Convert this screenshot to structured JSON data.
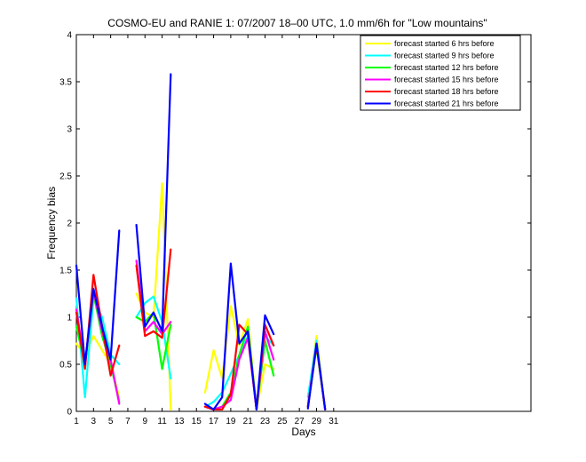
{
  "chart_data": {
    "type": "line",
    "title": "COSMO-EU and RANIE 1: 07/2007 18–00 UTC, 1.0 mm/6h for \"Low mountains\"",
    "xlabel": "Days",
    "ylabel": "Frequency bias",
    "xlim": [
      1,
      54
    ],
    "ylim": [
      0,
      4
    ],
    "xticks": [
      1,
      3,
      5,
      7,
      9,
      11,
      13,
      15,
      17,
      19,
      21,
      23,
      25,
      27,
      29,
      31
    ],
    "yticks": [
      0,
      0.5,
      1,
      1.5,
      2,
      2.5,
      3,
      3.5,
      4
    ],
    "ytick_labels": [
      "0",
      "0.5",
      "1",
      "1.5",
      "2",
      "2.5",
      "3",
      "3.5",
      "4"
    ],
    "legend_position": "top-right",
    "grid": false,
    "series": [
      {
        "name": "forecast started 6 hrs before",
        "color": "#ffff00",
        "points": [
          [
            1,
            0.72
          ],
          [
            2,
            0.6
          ],
          [
            3,
            0.8
          ],
          [
            4,
            0.65
          ],
          [
            5,
            0.5
          ],
          [
            6,
            0.15
          ],
          [
            null,
            null
          ],
          [
            8,
            1.25
          ],
          [
            9,
            1.05
          ],
          [
            10,
            1.0
          ],
          [
            11,
            2.42
          ],
          [
            12,
            0.02
          ],
          [
            null,
            null
          ],
          [
            16,
            0.2
          ],
          [
            17,
            0.65
          ],
          [
            18,
            0.35
          ],
          [
            19,
            1.12
          ],
          [
            20,
            0.7
          ],
          [
            21,
            0.98
          ],
          [
            22,
            0.02
          ],
          [
            23,
            0.5
          ],
          [
            24,
            0.45
          ],
          [
            null,
            null
          ],
          [
            28,
            0.1
          ],
          [
            29,
            0.8
          ],
          [
            30,
            0.02
          ]
        ]
      },
      {
        "name": "forecast started 9 hrs before",
        "color": "#00ffff",
        "points": [
          [
            1,
            1.2
          ],
          [
            2,
            0.15
          ],
          [
            3,
            1.2
          ],
          [
            4,
            1.0
          ],
          [
            5,
            0.6
          ],
          [
            6,
            0.5
          ],
          [
            null,
            null
          ],
          [
            8,
            1.0
          ],
          [
            9,
            1.15
          ],
          [
            10,
            1.22
          ],
          [
            11,
            0.95
          ],
          [
            12,
            0.35
          ],
          [
            null,
            null
          ],
          [
            16,
            0.05
          ],
          [
            17,
            0.1
          ],
          [
            18,
            0.2
          ],
          [
            19,
            0.4
          ],
          [
            20,
            0.6
          ],
          [
            21,
            0.8
          ],
          [
            22,
            0.02
          ],
          [
            23,
            0.8
          ],
          [
            24,
            0.7
          ],
          [
            null,
            null
          ],
          [
            28,
            0.15
          ],
          [
            29,
            0.75
          ],
          [
            30,
            0.02
          ]
        ]
      },
      {
        "name": "forecast started 12 hrs before",
        "color": "#00ff00",
        "points": [
          [
            1,
            0.9
          ],
          [
            2,
            0.5
          ],
          [
            3,
            1.25
          ],
          [
            4,
            0.8
          ],
          [
            5,
            0.5
          ],
          [
            6,
            0.1
          ],
          [
            null,
            null
          ],
          [
            8,
            1.0
          ],
          [
            9,
            0.95
          ],
          [
            10,
            1.05
          ],
          [
            11,
            0.45
          ],
          [
            12,
            0.92
          ],
          [
            null,
            null
          ],
          [
            16,
            0.05
          ],
          [
            17,
            0.02
          ],
          [
            18,
            0.05
          ],
          [
            19,
            0.2
          ],
          [
            20,
            0.6
          ],
          [
            21,
            0.9
          ],
          [
            22,
            0.02
          ],
          [
            23,
            0.75
          ],
          [
            24,
            0.38
          ],
          [
            null,
            null
          ],
          [
            28,
            0.05
          ],
          [
            29,
            0.68
          ],
          [
            30,
            0.02
          ]
        ]
      },
      {
        "name": "forecast started 15 hrs before",
        "color": "#ff00ff",
        "points": [
          [
            1,
            1.08
          ],
          [
            2,
            0.5
          ],
          [
            3,
            1.28
          ],
          [
            4,
            0.85
          ],
          [
            5,
            0.55
          ],
          [
            6,
            0.08
          ],
          [
            null,
            null
          ],
          [
            8,
            1.6
          ],
          [
            9,
            0.85
          ],
          [
            10,
            0.95
          ],
          [
            11,
            0.82
          ],
          [
            12,
            0.95
          ],
          [
            null,
            null
          ],
          [
            16,
            0.05
          ],
          [
            17,
            0.02
          ],
          [
            18,
            0.05
          ],
          [
            19,
            0.12
          ],
          [
            20,
            0.55
          ],
          [
            21,
            0.78
          ],
          [
            22,
            0.02
          ],
          [
            23,
            0.85
          ],
          [
            24,
            0.55
          ],
          [
            null,
            null
          ],
          [
            28,
            0.05
          ],
          [
            29,
            0.72
          ],
          [
            30,
            0.02
          ]
        ]
      },
      {
        "name": "forecast started 18 hrs before",
        "color": "#ff0000",
        "points": [
          [
            1,
            1.05
          ],
          [
            2,
            0.45
          ],
          [
            3,
            1.45
          ],
          [
            4,
            0.9
          ],
          [
            5,
            0.38
          ],
          [
            6,
            0.7
          ],
          [
            null,
            null
          ],
          [
            8,
            1.55
          ],
          [
            9,
            0.8
          ],
          [
            10,
            0.85
          ],
          [
            11,
            0.78
          ],
          [
            12,
            1.72
          ],
          [
            null,
            null
          ],
          [
            16,
            0.05
          ],
          [
            17,
            0.02
          ],
          [
            18,
            0.02
          ],
          [
            19,
            0.18
          ],
          [
            20,
            0.92
          ],
          [
            21,
            0.82
          ],
          [
            22,
            0.02
          ],
          [
            23,
            0.92
          ],
          [
            24,
            0.7
          ],
          [
            null,
            null
          ],
          [
            28,
            0.05
          ],
          [
            29,
            0.7
          ],
          [
            30,
            0.02
          ]
        ]
      },
      {
        "name": "forecast started 21 hrs before",
        "color": "#0000ff",
        "points": [
          [
            1,
            1.55
          ],
          [
            2,
            0.5
          ],
          [
            3,
            1.3
          ],
          [
            4,
            0.9
          ],
          [
            5,
            0.55
          ],
          [
            6,
            1.92
          ],
          [
            null,
            null
          ],
          [
            8,
            1.98
          ],
          [
            9,
            0.9
          ],
          [
            10,
            1.05
          ],
          [
            11,
            0.85
          ],
          [
            12,
            3.58
          ],
          [
            null,
            null
          ],
          [
            16,
            0.08
          ],
          [
            17,
            0.02
          ],
          [
            18,
            0.15
          ],
          [
            19,
            1.57
          ],
          [
            20,
            0.72
          ],
          [
            21,
            0.85
          ],
          [
            22,
            0.02
          ],
          [
            23,
            1.02
          ],
          [
            24,
            0.82
          ],
          [
            null,
            null
          ],
          [
            28,
            0.03
          ],
          [
            29,
            0.72
          ],
          [
            30,
            0.02
          ]
        ]
      }
    ]
  }
}
